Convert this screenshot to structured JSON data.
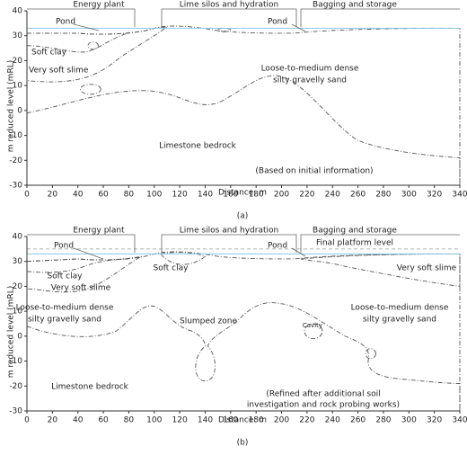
{
  "y_axis_label": "m reduced level (mRL)",
  "panels": [
    {
      "caption": "(a)",
      "x_axis_label": "Distance: m",
      "xticks": [
        0,
        20,
        40,
        60,
        80,
        100,
        120,
        140,
        160,
        180,
        200,
        220,
        240,
        260,
        280,
        300,
        320,
        340
      ],
      "yticks": [
        40,
        30,
        20,
        10,
        0,
        -10,
        -20,
        -30
      ],
      "facilities": [
        "Energy plant",
        "Lime silos and hydration",
        "Bagging and storage"
      ],
      "ponds": [
        "Pond",
        "Pond"
      ],
      "labels": [
        "Soft clay",
        "Very soft slime",
        "Loose-to-medium dense",
        "silty gravelly sand",
        "Limestone bedrock",
        "(Based on initial information)"
      ]
    },
    {
      "caption": "(b)",
      "x_axis_label": "Distance: m",
      "xticks": [
        0,
        20,
        40,
        60,
        80,
        100,
        120,
        140,
        160,
        180,
        200,
        220,
        240,
        260,
        280,
        300,
        320,
        340
      ],
      "yticks": [
        40,
        30,
        20,
        10,
        0,
        -10,
        -20,
        -30
      ],
      "facilities": [
        "Energy plant",
        "Lime silos and hydration",
        "Bagging and storage"
      ],
      "platform_label": "Final platform level",
      "ponds": [
        "Pond",
        "Pond"
      ],
      "labels": [
        "Soft clay",
        "Soft clay",
        "Very soft slime",
        "Very soft slime",
        "Loose-to-medium dense",
        "silty gravelly sand",
        "Loose-to-medium dense",
        "silty gravelly sand",
        "Slumped zone",
        "Cavity",
        "Limestone bedrock",
        "(Refined after additional soil",
        "investigation and rock probing works)"
      ]
    }
  ]
}
